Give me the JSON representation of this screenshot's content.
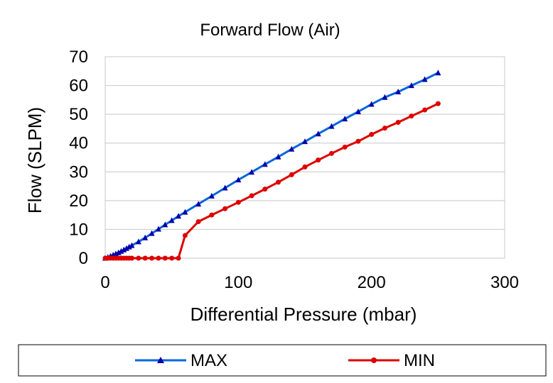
{
  "chart_data": {
    "type": "line",
    "title": "Forward Flow (Air)",
    "xlabel": "Differential Pressure (mbar)",
    "ylabel": "Flow (SLPM)",
    "xlim": [
      0,
      300
    ],
    "ylim": [
      0,
      70
    ],
    "xticks": [
      0,
      100,
      200,
      300
    ],
    "yticks": [
      0,
      10,
      20,
      30,
      40,
      50,
      60,
      70
    ],
    "grid": "horizontal",
    "legend": "bottom",
    "series": [
      {
        "name": "MAX",
        "color": "#0066DD",
        "marker": "triangle",
        "x": [
          0,
          2,
          4,
          6,
          8,
          10,
          12,
          14,
          16,
          18,
          20,
          25,
          30,
          35,
          40,
          45,
          50,
          55,
          60,
          70,
          80,
          90,
          100,
          110,
          120,
          130,
          140,
          150,
          160,
          170,
          180,
          190,
          200,
          210,
          220,
          230,
          240,
          250
        ],
        "y": [
          0,
          0.3,
          0.7,
          1.1,
          1.5,
          1.9,
          2.4,
          2.9,
          3.4,
          3.9,
          4.4,
          5.7,
          7.1,
          8.6,
          10.1,
          11.6,
          13.1,
          14.6,
          16.0,
          18.8,
          21.6,
          24.4,
          27.2,
          29.9,
          32.6,
          35.2,
          37.9,
          40.5,
          43.2,
          45.8,
          48.4,
          50.9,
          53.5,
          55.9,
          57.8,
          60.0,
          62.1,
          64.4
        ]
      },
      {
        "name": "MIN",
        "color": "#DD0000",
        "marker": "circle",
        "x": [
          0,
          2,
          4,
          6,
          8,
          10,
          12,
          14,
          16,
          18,
          20,
          25,
          30,
          35,
          40,
          45,
          50,
          55,
          60,
          70,
          80,
          90,
          100,
          110,
          120,
          130,
          140,
          150,
          160,
          170,
          180,
          190,
          200,
          210,
          220,
          230,
          240,
          250
        ],
        "y": [
          0,
          0,
          0,
          0,
          0,
          0,
          0,
          0,
          0,
          0,
          0,
          0,
          0,
          0,
          0,
          0,
          0,
          0,
          7.9,
          12.7,
          15.0,
          17.2,
          19.4,
          21.7,
          24.0,
          26.4,
          29.0,
          31.7,
          34.1,
          36.4,
          38.6,
          40.6,
          43.0,
          45.2,
          47.2,
          49.4,
          51.5,
          53.7
        ]
      }
    ]
  }
}
